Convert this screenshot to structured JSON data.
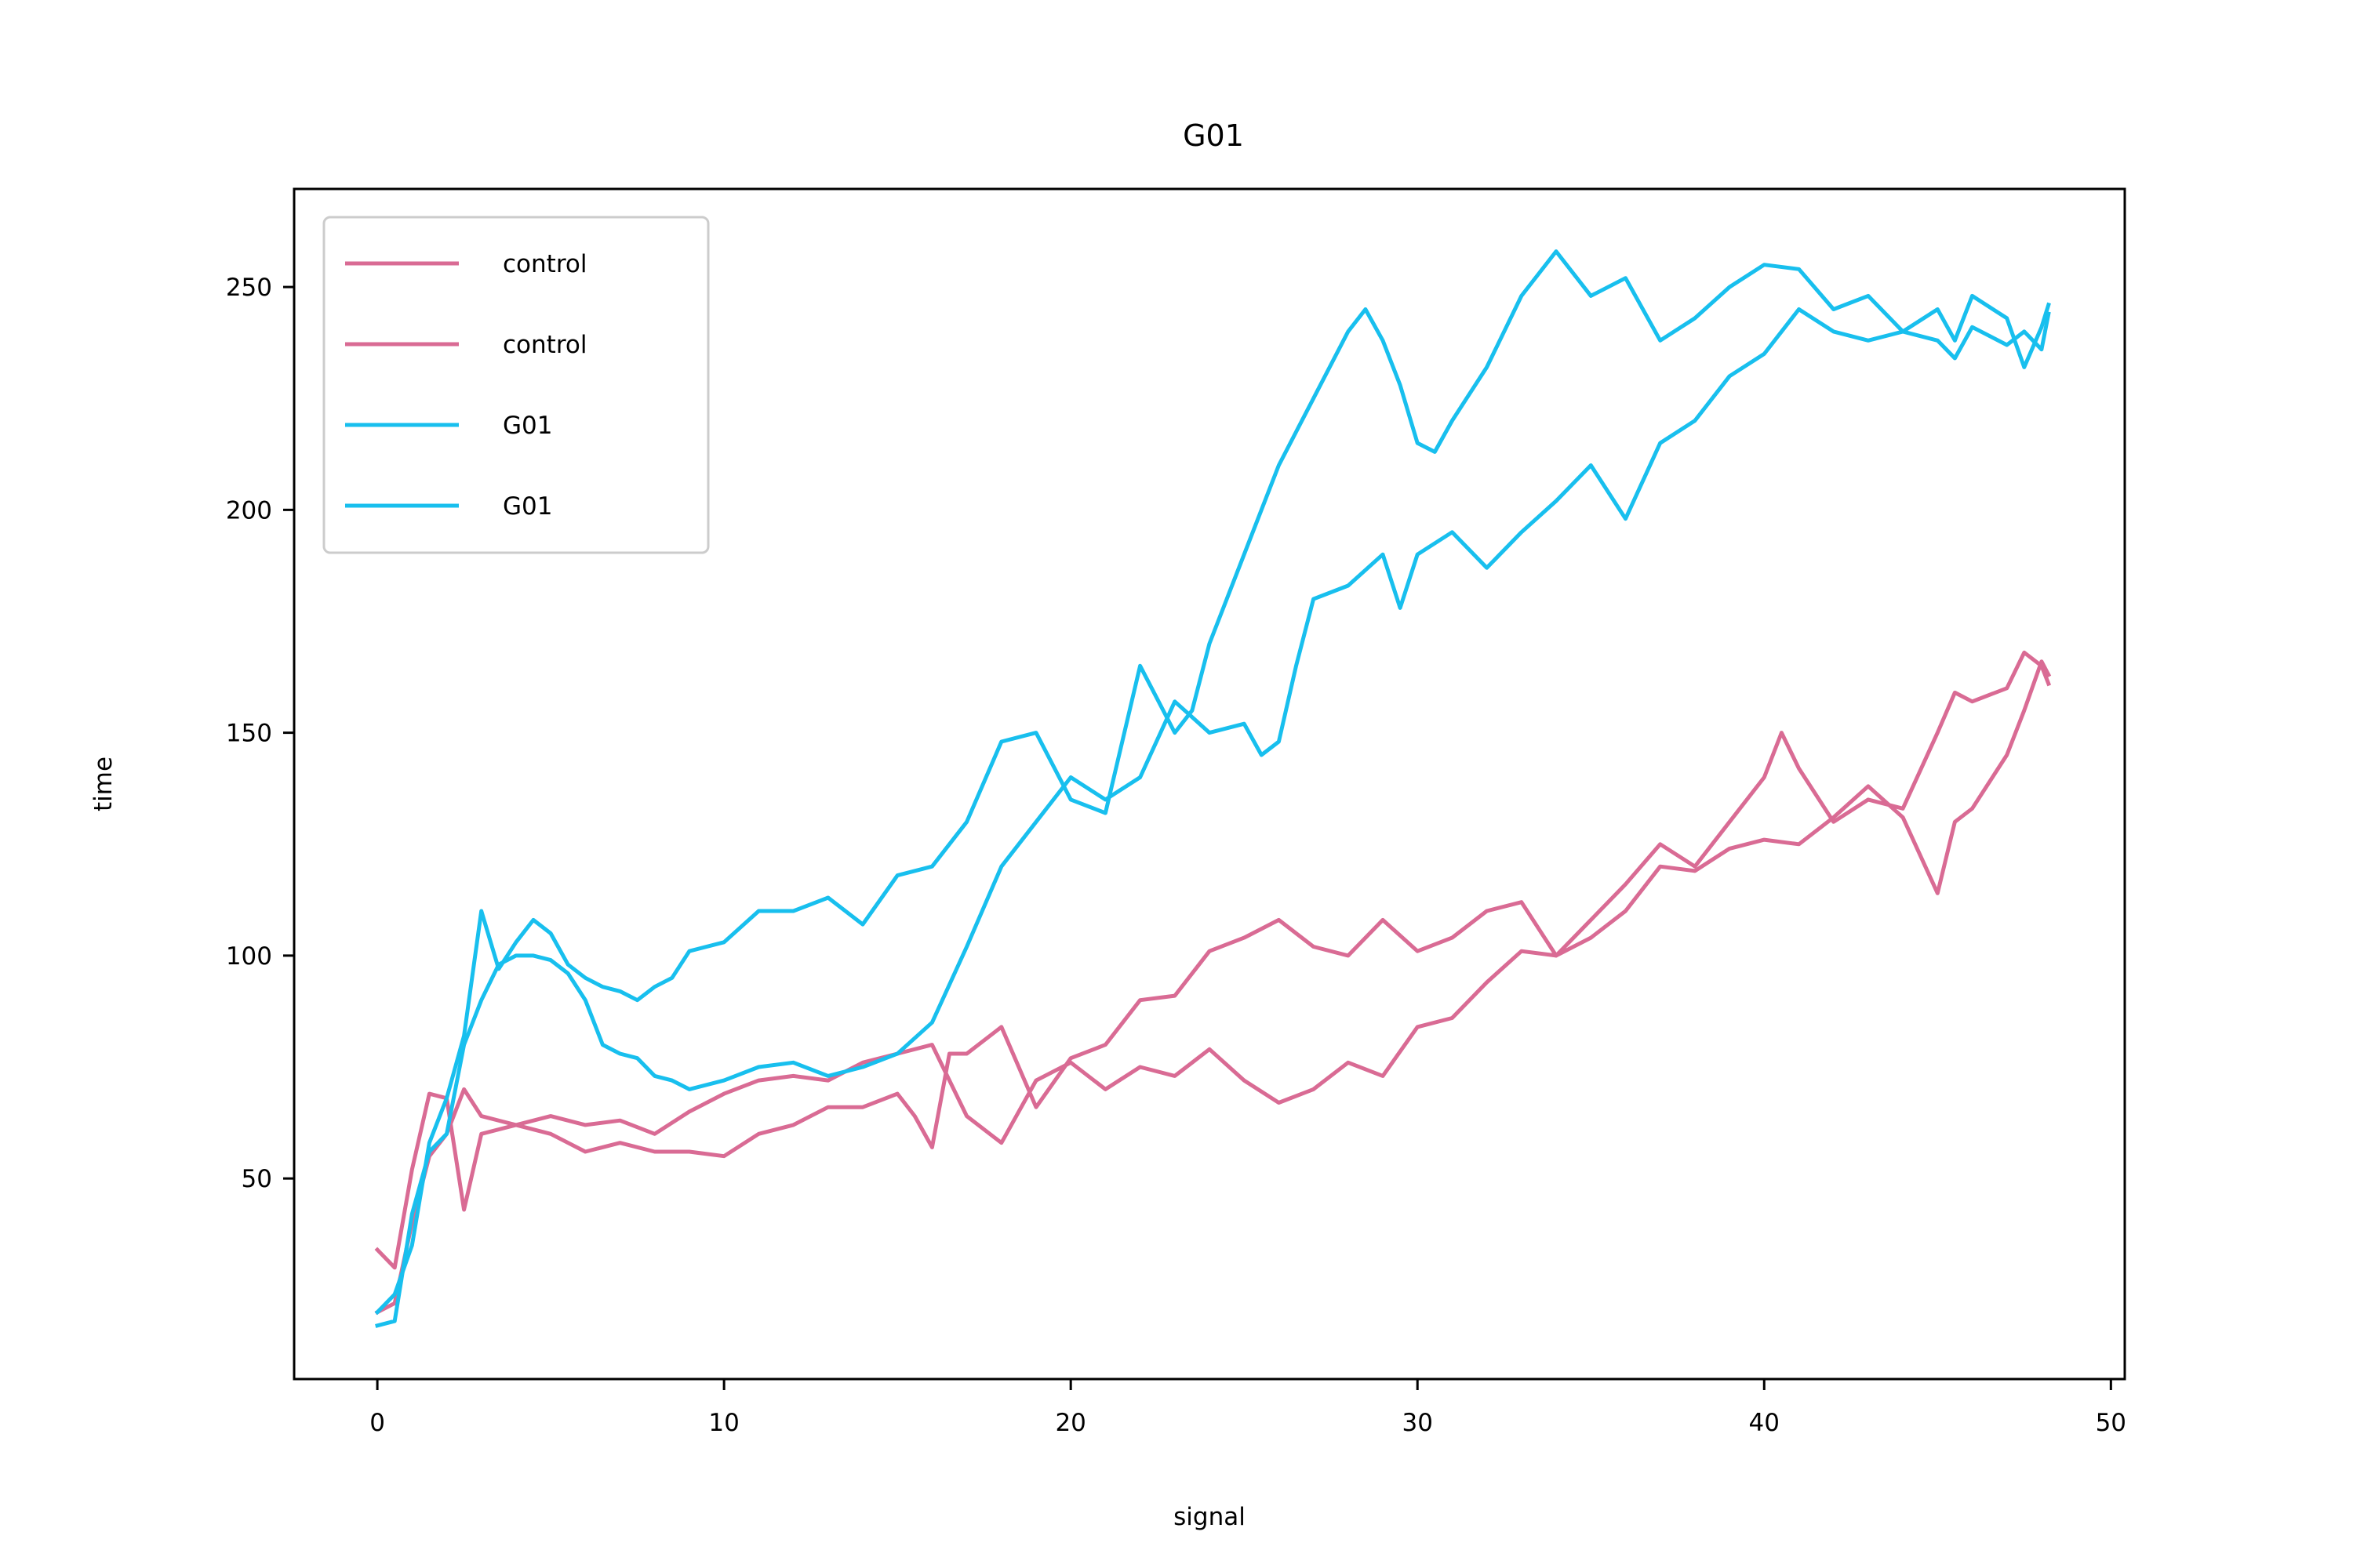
{
  "chart_data": {
    "type": "line",
    "title": "G01",
    "xlabel": "signal",
    "ylabel": "time",
    "xlim": [
      -2.4,
      50.4
    ],
    "ylim": [
      5,
      272
    ],
    "x_ticks": [
      0,
      10,
      20,
      30,
      40,
      50
    ],
    "y_ticks": [
      50,
      100,
      150,
      200,
      250
    ],
    "grid": false,
    "legend_position": "top-left",
    "series": [
      {
        "name": "control",
        "color": "#d96b94",
        "x": [
          0,
          0.5,
          1,
          1.5,
          2,
          2.5,
          3,
          4,
          5,
          6,
          7,
          8,
          9,
          10,
          11,
          12,
          13,
          14,
          15,
          15.5,
          16,
          16.5,
          17,
          18,
          19,
          20,
          21,
          22,
          23,
          24,
          25,
          26,
          27,
          28,
          29,
          30,
          31,
          32,
          33,
          34,
          35,
          36,
          37,
          38,
          39,
          40,
          40.5,
          41,
          42,
          43,
          44,
          45,
          45.5,
          46,
          47,
          47.5,
          48,
          48.2
        ],
        "y": [
          34,
          30,
          52,
          69,
          68,
          43,
          60,
          62,
          60,
          56,
          58,
          56,
          56,
          55,
          60,
          62,
          66,
          66,
          69,
          64,
          57,
          78,
          78,
          84,
          66,
          77,
          80,
          90,
          91,
          101,
          104,
          108,
          102,
          100,
          108,
          101,
          104,
          110,
          112,
          100,
          108,
          116,
          125,
          120,
          130,
          140,
          150,
          142,
          130,
          135,
          133,
          150,
          159,
          157,
          160,
          168,
          165,
          161
        ]
      },
      {
        "name": "control",
        "color": "#d96b94",
        "x": [
          0,
          0.5,
          1,
          1.5,
          2,
          2.5,
          3,
          4,
          5,
          6,
          7,
          8,
          9,
          10,
          11,
          12,
          13,
          14,
          15,
          16,
          17,
          18,
          19,
          20,
          21,
          22,
          23,
          24,
          25,
          26,
          27,
          28,
          29,
          30,
          31,
          32,
          33,
          34,
          35,
          36,
          37,
          38,
          39,
          40,
          41,
          42,
          43,
          44,
          45,
          45.5,
          46,
          47,
          47.5,
          48,
          48.2
        ],
        "y": [
          20,
          22,
          40,
          55,
          60,
          70,
          64,
          62,
          64,
          62,
          63,
          60,
          65,
          69,
          72,
          73,
          72,
          76,
          78,
          80,
          64,
          58,
          72,
          76,
          70,
          75,
          73,
          79,
          72,
          67,
          70,
          76,
          73,
          84,
          86,
          94,
          101,
          100,
          104,
          110,
          120,
          119,
          124,
          126,
          125,
          131,
          138,
          131,
          114,
          130,
          133,
          145,
          155,
          166,
          163
        ]
      },
      {
        "name": "G01",
        "color": "#18bfee",
        "x": [
          0,
          0.5,
          1,
          1.5,
          2,
          2.5,
          3,
          3.5,
          4,
          4.5,
          5,
          5.5,
          6,
          6.5,
          7,
          7.5,
          8,
          8.5,
          9,
          10,
          11,
          12,
          13,
          14,
          15,
          16,
          17,
          18,
          19,
          20,
          21,
          22,
          23,
          23.5,
          24,
          24.5,
          25,
          25.5,
          26,
          27,
          28,
          28.5,
          29,
          29.5,
          30,
          30.5,
          31,
          32,
          33,
          34,
          35,
          36,
          37,
          38,
          39,
          40,
          41,
          42,
          43,
          44,
          45,
          45.5,
          46,
          47,
          47.5,
          48,
          48.2
        ],
        "y": [
          20,
          24,
          35,
          58,
          68,
          82,
          110,
          97,
          103,
          108,
          105,
          98,
          95,
          93,
          92,
          90,
          93,
          95,
          101,
          103,
          110,
          110,
          113,
          107,
          118,
          120,
          130,
          148,
          150,
          135,
          132,
          165,
          150,
          155,
          170,
          180,
          190,
          200,
          210,
          225,
          240,
          245,
          238,
          228,
          215,
          213,
          220,
          232,
          248,
          258,
          248,
          252,
          238,
          243,
          250,
          255,
          254,
          245,
          248,
          240,
          245,
          238,
          248,
          243,
          232,
          241,
          246
        ]
      },
      {
        "name": "G01",
        "color": "#18bfee",
        "x": [
          0,
          0.5,
          1,
          1.5,
          2,
          2.5,
          3,
          3.5,
          4,
          4.5,
          5,
          5.5,
          6,
          6.5,
          7,
          7.5,
          8,
          8.5,
          9,
          10,
          11,
          12,
          13,
          14,
          15,
          16,
          17,
          18,
          19,
          20,
          21,
          22,
          23,
          24,
          25,
          25.5,
          26,
          26.5,
          27,
          28,
          29,
          29.5,
          30,
          31,
          32,
          33,
          34,
          35,
          36,
          37,
          38,
          39,
          40,
          41,
          42,
          43,
          44,
          45,
          45.5,
          46,
          47,
          47.5,
          48,
          48.2
        ],
        "y": [
          17,
          18,
          42,
          56,
          60,
          80,
          90,
          98,
          100,
          100,
          99,
          96,
          90,
          80,
          78,
          77,
          73,
          72,
          70,
          72,
          75,
          76,
          73,
          75,
          78,
          85,
          102,
          120,
          130,
          140,
          135,
          140,
          157,
          150,
          152,
          145,
          148,
          165,
          180,
          183,
          190,
          178,
          190,
          195,
          187,
          195,
          202,
          210,
          198,
          215,
          220,
          230,
          235,
          245,
          240,
          238,
          240,
          238,
          234,
          241,
          237,
          240,
          236,
          244
        ]
      }
    ]
  }
}
